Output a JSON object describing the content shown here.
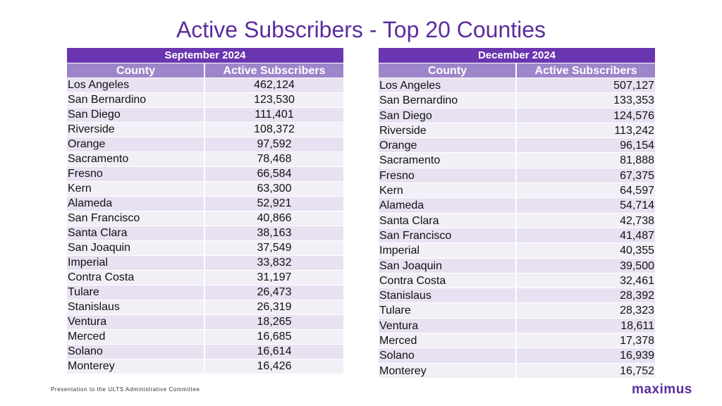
{
  "title": "Active Subscribers - Top 20 Counties",
  "colors": {
    "accent": "#5b2d9e",
    "header": "#6a35b0",
    "subheader": "#9d85c9",
    "row_odd": "#e7e1f1",
    "row_even": "#f2eff7"
  },
  "tables": [
    {
      "period": "September 2024",
      "col_county": "County",
      "col_subs": "Active Subscribers",
      "rows": [
        {
          "county": "Los Angeles",
          "subs": "462,124"
        },
        {
          "county": "San Bernardino",
          "subs": "123,530"
        },
        {
          "county": "San Diego",
          "subs": "111,401"
        },
        {
          "county": "Riverside",
          "subs": "108,372"
        },
        {
          "county": "Orange",
          "subs": "97,592"
        },
        {
          "county": "Sacramento",
          "subs": "78,468"
        },
        {
          "county": "Fresno",
          "subs": "66,584"
        },
        {
          "county": "Kern",
          "subs": "63,300"
        },
        {
          "county": "Alameda",
          "subs": "52,921"
        },
        {
          "county": "San Francisco",
          "subs": "40,866"
        },
        {
          "county": "Santa Clara",
          "subs": "38,163"
        },
        {
          "county": "San Joaquin",
          "subs": "37,549"
        },
        {
          "county": "Imperial",
          "subs": "33,832"
        },
        {
          "county": "Contra Costa",
          "subs": "31,197"
        },
        {
          "county": "Tulare",
          "subs": "26,473"
        },
        {
          "county": "Stanislaus",
          "subs": "26,319"
        },
        {
          "county": "Ventura",
          "subs": "18,265"
        },
        {
          "county": "Merced",
          "subs": "16,685"
        },
        {
          "county": "Solano",
          "subs": "16,614"
        },
        {
          "county": "Monterey",
          "subs": "16,426"
        }
      ]
    },
    {
      "period": "December 2024",
      "col_county": "County",
      "col_subs": "Active Subscribers",
      "rows": [
        {
          "county": "Los Angeles",
          "subs": "507,127"
        },
        {
          "county": "San Bernardino",
          "subs": "133,353"
        },
        {
          "county": "San Diego",
          "subs": "124,576"
        },
        {
          "county": "Riverside",
          "subs": "113,242"
        },
        {
          "county": "Orange",
          "subs": "96,154"
        },
        {
          "county": "Sacramento",
          "subs": "81,888"
        },
        {
          "county": "Fresno",
          "subs": "67,375"
        },
        {
          "county": "Kern",
          "subs": "64,597"
        },
        {
          "county": "Alameda",
          "subs": "54,714"
        },
        {
          "county": "Santa Clara",
          "subs": "42,738"
        },
        {
          "county": "San Francisco",
          "subs": "41,487"
        },
        {
          "county": "Imperial",
          "subs": "40,355"
        },
        {
          "county": "San Joaquin",
          "subs": "39,500"
        },
        {
          "county": "Contra Costa",
          "subs": "32,461"
        },
        {
          "county": "Stanislaus",
          "subs": "28,392"
        },
        {
          "county": "Tulare",
          "subs": "28,323"
        },
        {
          "county": "Ventura",
          "subs": "18,611"
        },
        {
          "county": "Merced",
          "subs": "17,378"
        },
        {
          "county": "Solano",
          "subs": "16,939"
        },
        {
          "county": "Monterey",
          "subs": "16,752"
        }
      ]
    }
  ],
  "footer": "Presentation to the ULTS Administrative Committee",
  "logo": "maximus"
}
